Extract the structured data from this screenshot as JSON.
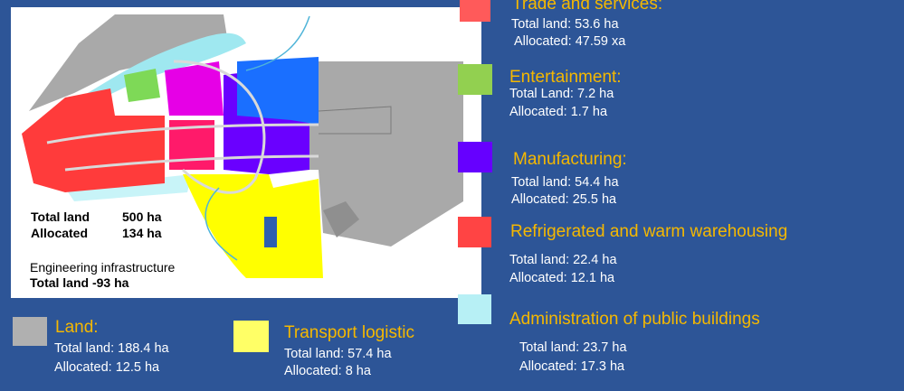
{
  "map": {
    "total_land_label": "Total land",
    "total_land_value": "500 ha",
    "allocated_label": "Allocated",
    "allocated_value": "134 ha",
    "engineering_title": "Engineering infrastructure",
    "engineering_total": "Total land -93 ha"
  },
  "legend": {
    "trade": {
      "title": "Trade and services:",
      "total": "Total land: 53.6 ha",
      "allocated": "Allocated: 47.59 xa",
      "color": "#ff5a5a"
    },
    "entertainment": {
      "title": "Entertainment:",
      "total": "Total Land: 7.2 ha",
      "allocated": "Allocated: 1.7 ha",
      "color": "#92d050"
    },
    "manufacturing": {
      "title": "Manufacturing:",
      "total": "Total land: 54.4 ha",
      "allocated": "Allocated: 25.5 ha",
      "color": "#6600ff"
    },
    "refrigerated": {
      "title": "Refrigerated and warm warehousing",
      "total": "Total land: 22.4 ha",
      "allocated": "Allocated: 12.1 ha",
      "color": "#ff4444"
    },
    "administration": {
      "title": "Administration of public buildings",
      "total": "Total land: 23.7 ha",
      "allocated": "Allocated: 17.3 ha",
      "color": "#b7f0f5"
    },
    "land": {
      "title": "Land:",
      "total": "Total land: 188.4 ha",
      "allocated": "Allocated: 12.5 ha",
      "color": "#b0b0b0"
    },
    "transport": {
      "title": "Transport logistic",
      "total": "Total land: 57.4 ha",
      "allocated": "Allocated: 8 ha",
      "color": "#ffff66"
    }
  }
}
